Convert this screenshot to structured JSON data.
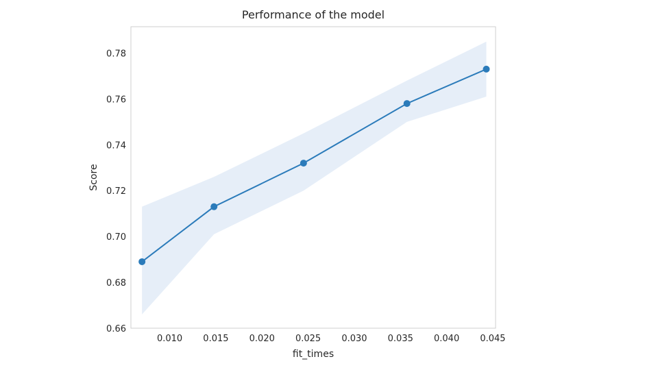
{
  "chart_data": {
    "type": "line",
    "title": "Performance of the model",
    "xlabel": "fit_times",
    "ylabel": "Score",
    "xlim": [
      0.0058,
      0.0453
    ],
    "ylim": [
      0.66,
      0.7915
    ],
    "x_ticks": [
      0.01,
      0.015,
      0.02,
      0.025,
      0.03,
      0.035,
      0.04,
      0.045
    ],
    "x_tick_labels": [
      "0.010",
      "0.015",
      "0.020",
      "0.025",
      "0.030",
      "0.035",
      "0.040",
      "0.045"
    ],
    "y_ticks": [
      0.66,
      0.68,
      0.7,
      0.72,
      0.74,
      0.76,
      0.78
    ],
    "y_tick_labels": [
      "0.66",
      "0.68",
      "0.70",
      "0.72",
      "0.74",
      "0.76",
      "0.78"
    ],
    "grid": false,
    "series": [
      {
        "x": [
          0.007,
          0.0148,
          0.0245,
          0.0357,
          0.0443
        ],
        "y": [
          0.689,
          0.713,
          0.732,
          0.758,
          0.773
        ],
        "band_lower": [
          0.666,
          0.701,
          0.72,
          0.75,
          0.761
        ],
        "band_upper": [
          0.713,
          0.726,
          0.745,
          0.768,
          0.785
        ],
        "color": "#2b7bba",
        "band_color": "#e6eef8"
      }
    ]
  }
}
